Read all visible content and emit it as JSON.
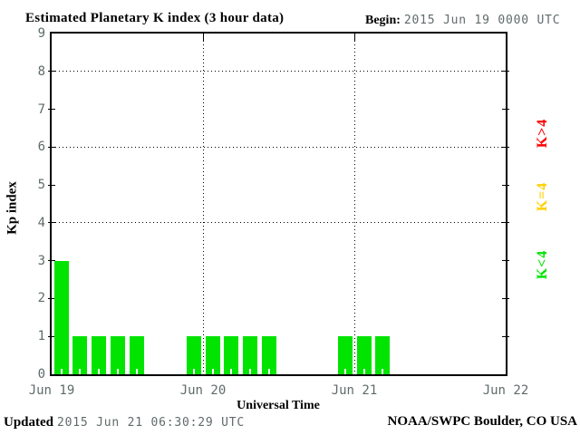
{
  "header": {
    "title": "Estimated Planetary K index (3 hour data)",
    "begin_label": "Begin:",
    "begin_value": "2015 Jun 19 0000 UTC"
  },
  "footer": {
    "updated_label": "Updated",
    "updated_value": "2015 Jun 21 06:30:29 UTC",
    "credit": "NOAA/SWPC Boulder, CO USA"
  },
  "chart_data": {
    "type": "bar",
    "title": "Estimated Planetary K index (3 hour data)",
    "xlabel": "Universal Time",
    "ylabel": "Kp index",
    "ylim": [
      0,
      9
    ],
    "yticks": [
      0,
      1,
      2,
      3,
      4,
      5,
      6,
      7,
      8,
      9
    ],
    "grid_y_dotted": [
      4,
      6,
      8
    ],
    "x_tick_labels": [
      "Jun 19",
      "Jun 20",
      "Jun 21",
      "Jun 22"
    ],
    "bar_interval_hours": 3,
    "bars_per_day": 8,
    "values": [
      3,
      1,
      1,
      1,
      1,
      0,
      0,
      1,
      1,
      1,
      1,
      1,
      0,
      0,
      0,
      1,
      1,
      1,
      0,
      0,
      0,
      0,
      0,
      0
    ],
    "color_rules": {
      "below_4": "#00e400",
      "equal_4": "#ffd000",
      "above_4": "#ff0000"
    },
    "legend": [
      {
        "label": "K>4",
        "color": "#ff0000"
      },
      {
        "label": "K=4",
        "color": "#ffd000"
      },
      {
        "label": "K<4",
        "color": "#00e400"
      }
    ],
    "legend_position": "right",
    "grid": "dotted-horizontal-and-day-separators"
  }
}
